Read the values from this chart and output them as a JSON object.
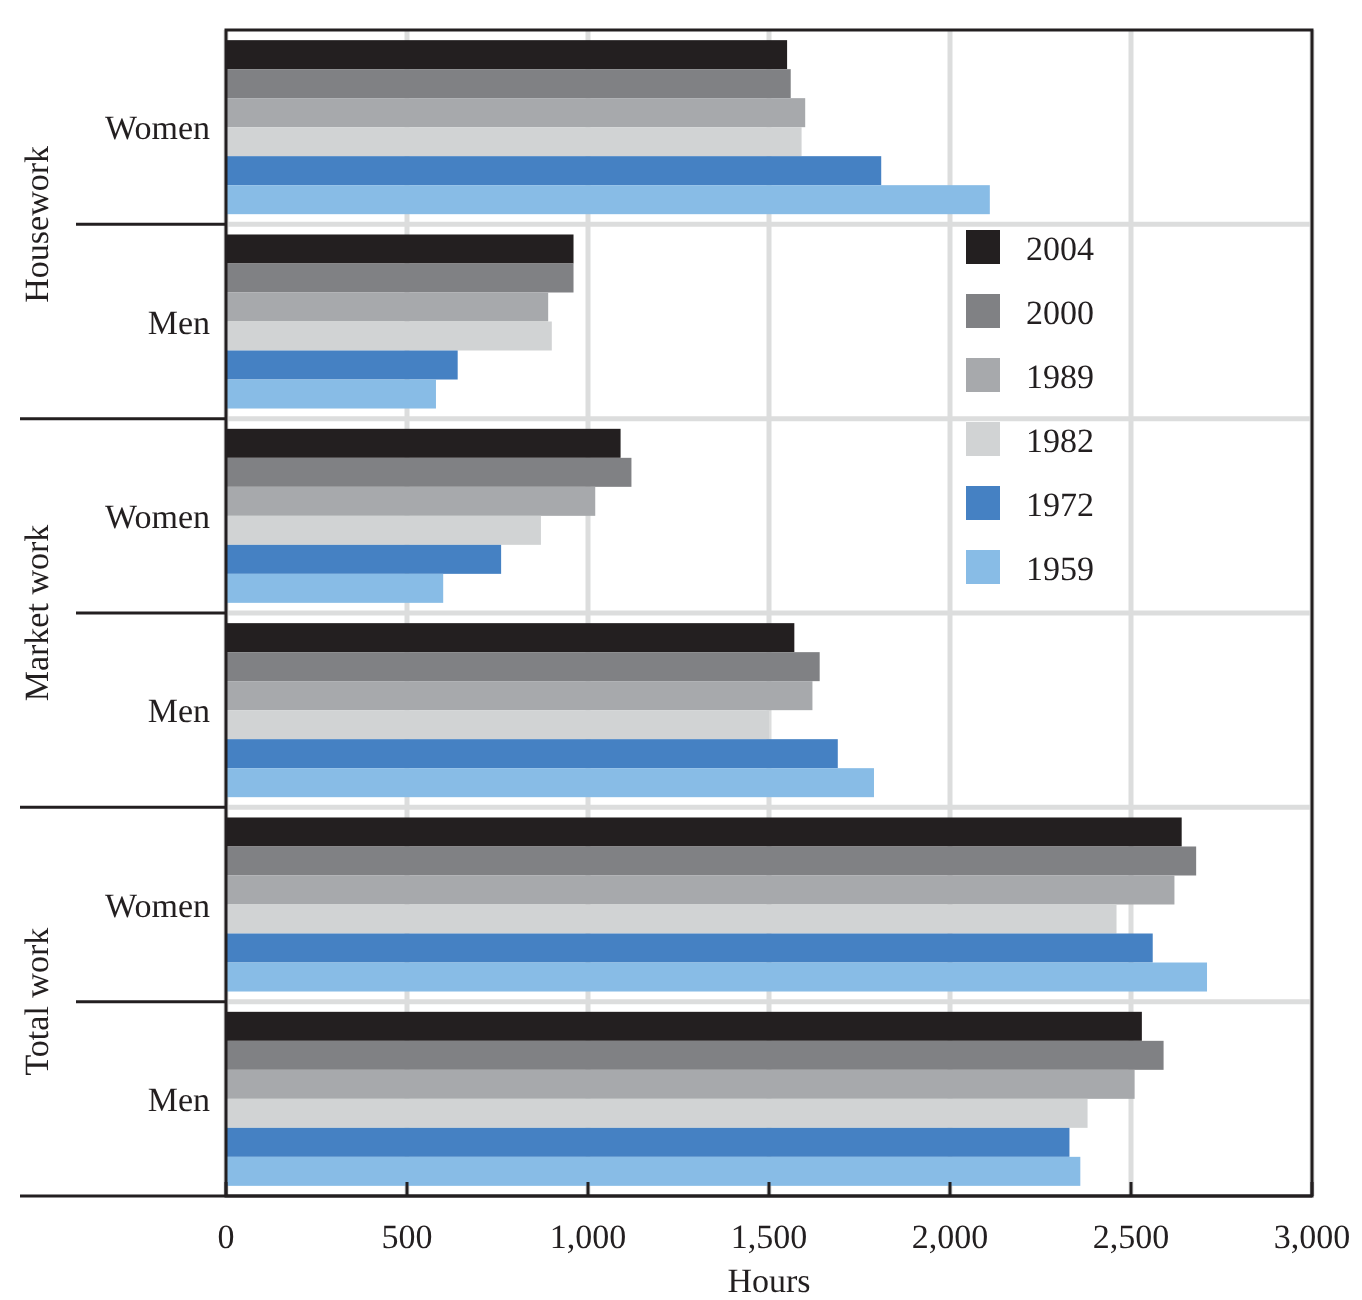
{
  "chart_data": {
    "type": "bar",
    "orientation": "horizontal",
    "xlabel": "Hours",
    "categories": [
      "Women",
      "Men",
      "Women",
      "Men",
      "Women",
      "Men"
    ],
    "annotations": [
      "Housework",
      "Market work",
      "Total work"
    ],
    "series": [
      {
        "name": "2004",
        "color": "#231f20",
        "values": [
          1550,
          960,
          1090,
          1570,
          2640,
          2530
        ]
      },
      {
        "name": "2000",
        "color": "#808184",
        "values": [
          1560,
          960,
          1120,
          1640,
          2680,
          2590
        ]
      },
      {
        "name": "1989",
        "color": "#a7a9ac",
        "values": [
          1600,
          890,
          1020,
          1620,
          2620,
          2510
        ]
      },
      {
        "name": "1982",
        "color": "#d1d3d4",
        "values": [
          1590,
          900,
          870,
          1500,
          2460,
          2380
        ]
      },
      {
        "name": "1972",
        "color": "#4581c3",
        "values": [
          1810,
          640,
          760,
          1690,
          2560,
          2330
        ]
      },
      {
        "name": "1959",
        "color": "#88bce6",
        "values": [
          2110,
          580,
          600,
          1790,
          2710,
          2360
        ]
      }
    ],
    "xlim": [
      0,
      3000
    ],
    "xticks": [
      0,
      {
        "value": 500,
        "label": "500"
      },
      {
        "value": 1000,
        "label": "1,000"
      },
      {
        "value": 1500,
        "label": "1,500"
      },
      {
        "value": 2000,
        "label": "2,000"
      },
      {
        "value": 2500,
        "label": "2,500"
      },
      {
        "value": 3000,
        "label": "3,000"
      }
    ],
    "grid": "x",
    "legend": "top right"
  }
}
